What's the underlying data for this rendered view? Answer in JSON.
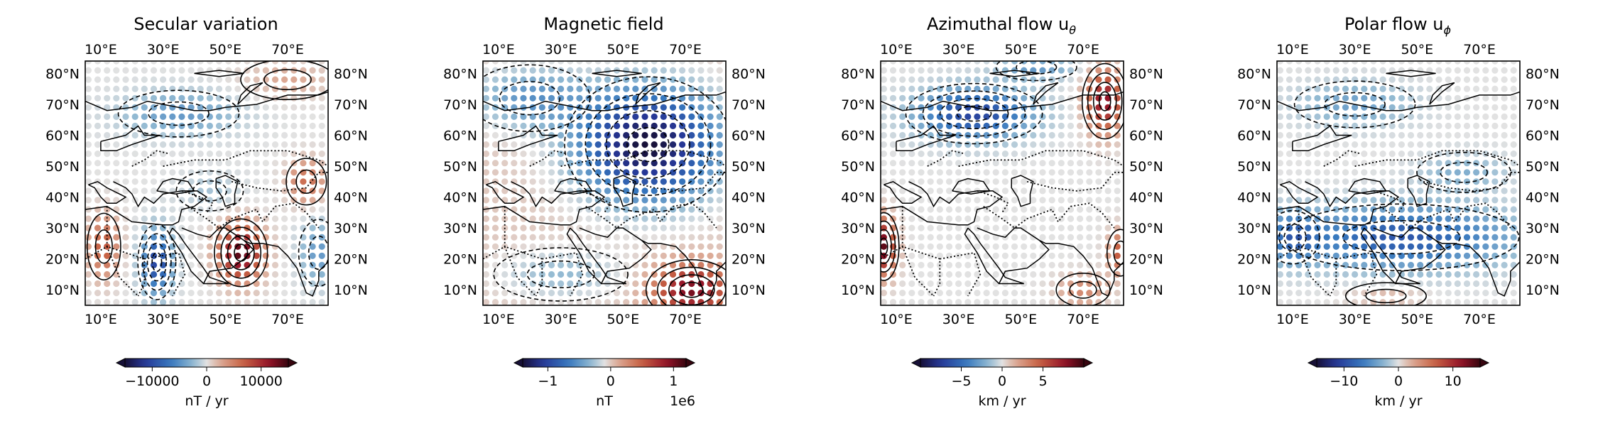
{
  "figure": {
    "panel_titles": [
      "Secular variation",
      "Magnetic field",
      "Azimuthal flow u",
      "Polar flow u"
    ]
  },
  "chart_data": [
    {
      "type": "heatmap",
      "title": "Secular variation",
      "title_symbol": "",
      "xlim": [
        5,
        83
      ],
      "ylim": [
        5,
        84
      ],
      "x_ticks": [
        10,
        30,
        50,
        70
      ],
      "x_tick_labels": [
        "10°E",
        "30°E",
        "50°E",
        "70°E"
      ],
      "y_ticks": [
        10,
        20,
        30,
        40,
        50,
        60,
        70,
        80
      ],
      "y_tick_labels": [
        "10°N",
        "20°N",
        "30°N",
        "40°N",
        "50°N",
        "60°N",
        "70°N",
        "80°N"
      ],
      "grid": false,
      "colorbar": {
        "vmin": -15000,
        "vmax": 15000,
        "ticks": [
          -10000,
          0,
          10000
        ],
        "tick_labels": [
          "−10000",
          "0",
          "10000"
        ],
        "label": "nT / yr",
        "offset": "",
        "extend": "both",
        "colormap": "blue-white-red"
      },
      "field": {
        "centers": [
          {
            "lon": 55,
            "lat": 22,
            "amp": 14000,
            "rx": 7,
            "ry": 9
          },
          {
            "lon": 28,
            "lat": 19,
            "amp": -10500,
            "rx": 5,
            "ry": 10
          },
          {
            "lon": 11,
            "lat": 24,
            "amp": 7500,
            "rx": 5,
            "ry": 10
          },
          {
            "lon": 76,
            "lat": 45,
            "amp": 6000,
            "rx": 6,
            "ry": 7
          },
          {
            "lon": 35,
            "lat": 67,
            "amp": -4500,
            "rx": 18,
            "ry": 7
          },
          {
            "lon": 80,
            "lat": 22,
            "amp": -4500,
            "rx": 6,
            "ry": 10
          },
          {
            "lon": 70,
            "lat": 78,
            "amp": 2500,
            "rx": 14,
            "ry": 6
          },
          {
            "lon": 45,
            "lat": 42,
            "amp": -1800,
            "rx": 10,
            "ry": 6
          }
        ]
      }
    },
    {
      "type": "heatmap",
      "title": "Magnetic field",
      "title_symbol": "",
      "xlim": [
        5,
        83
      ],
      "ylim": [
        5,
        84
      ],
      "x_ticks": [
        10,
        30,
        50,
        70
      ],
      "x_tick_labels": [
        "10°E",
        "30°E",
        "50°E",
        "70°E"
      ],
      "y_ticks": [
        10,
        20,
        30,
        40,
        50,
        60,
        70,
        80
      ],
      "y_tick_labels": [
        "10°N",
        "20°N",
        "30°N",
        "40°N",
        "50°N",
        "60°N",
        "70°N",
        "80°N"
      ],
      "grid": false,
      "colorbar": {
        "vmin": -1400000,
        "vmax": 1200000,
        "ticks": [
          -1000000,
          0,
          1000000
        ],
        "tick_labels": [
          "−1",
          "0",
          "1"
        ],
        "label": "nT",
        "offset": "1e6",
        "extend": "both",
        "colormap": "blue-white-red"
      },
      "field": {
        "centers": [
          {
            "lon": 58,
            "lat": 57,
            "amp": -1400000,
            "rx": 22,
            "ry": 18
          },
          {
            "lon": 20,
            "lat": 72,
            "amp": -500000,
            "rx": 18,
            "ry": 10
          },
          {
            "lon": 72,
            "lat": 10,
            "amp": 1000000,
            "rx": 12,
            "ry": 8
          },
          {
            "lon": 30,
            "lat": 15,
            "amp": -300000,
            "rx": 20,
            "ry": 8
          }
        ]
      }
    },
    {
      "type": "heatmap",
      "title": "Azimuthal flow u",
      "title_symbol": "θ",
      "xlim": [
        5,
        83
      ],
      "ylim": [
        5,
        84
      ],
      "x_ticks": [
        10,
        30,
        50,
        70
      ],
      "x_tick_labels": [
        "10°E",
        "30°E",
        "50°E",
        "70°E"
      ],
      "y_ticks": [
        10,
        20,
        30,
        40,
        50,
        60,
        70,
        80
      ],
      "y_tick_labels": [
        "10°N",
        "20°N",
        "30°N",
        "40°N",
        "50°N",
        "60°N",
        "70°N",
        "80°N"
      ],
      "grid": false,
      "colorbar": {
        "vmin": -10,
        "vmax": 10,
        "ticks": [
          -5,
          0,
          5
        ],
        "tick_labels": [
          "−5",
          "0",
          "5"
        ],
        "label": "km / yr",
        "offset": "",
        "extend": "both",
        "colormap": "blue-white-red"
      },
      "field": {
        "centers": [
          {
            "lon": 35,
            "lat": 67,
            "amp": -7,
            "rx": 18,
            "ry": 8
          },
          {
            "lon": 77,
            "lat": 71,
            "amp": 8,
            "rx": 6,
            "ry": 10
          },
          {
            "lon": 6,
            "lat": 24,
            "amp": 9,
            "rx": 4,
            "ry": 9
          },
          {
            "lon": 82,
            "lat": 22,
            "amp": 5,
            "rx": 4,
            "ry": 7
          },
          {
            "lon": 70,
            "lat": 10,
            "amp": 3,
            "rx": 8,
            "ry": 5
          },
          {
            "lon": 55,
            "lat": 82,
            "amp": -3,
            "rx": 12,
            "ry": 4
          }
        ]
      }
    },
    {
      "type": "heatmap",
      "title": "Polar flow u",
      "title_symbol": "ϕ",
      "xlim": [
        5,
        83
      ],
      "ylim": [
        5,
        84
      ],
      "x_ticks": [
        10,
        30,
        50,
        70
      ],
      "x_tick_labels": [
        "10°E",
        "30°E",
        "50°E",
        "70°E"
      ],
      "y_ticks": [
        10,
        20,
        30,
        40,
        50,
        60,
        70,
        80
      ],
      "y_tick_labels": [
        "10°N",
        "20°N",
        "30°N",
        "40°N",
        "50°N",
        "60°N",
        "70°N",
        "80°N"
      ],
      "grid": false,
      "colorbar": {
        "vmin": -15,
        "vmax": 15,
        "ticks": [
          -10,
          0,
          10
        ],
        "tick_labels": [
          "−10",
          "0",
          "10"
        ],
        "label": "km / yr",
        "offset": "",
        "extend": "both",
        "colormap": "blue-white-red"
      },
      "field": {
        "centers": [
          {
            "lon": 45,
            "lat": 27,
            "amp": -9,
            "rx": 35,
            "ry": 10
          },
          {
            "lon": 10,
            "lat": 27,
            "amp": -6,
            "rx": 8,
            "ry": 8
          },
          {
            "lon": 30,
            "lat": 70,
            "amp": -4,
            "rx": 18,
            "ry": 7
          },
          {
            "lon": 65,
            "lat": 48,
            "amp": -3,
            "rx": 14,
            "ry": 6
          },
          {
            "lon": 40,
            "lat": 8,
            "amp": 2,
            "rx": 12,
            "ry": 4
          }
        ]
      }
    }
  ]
}
